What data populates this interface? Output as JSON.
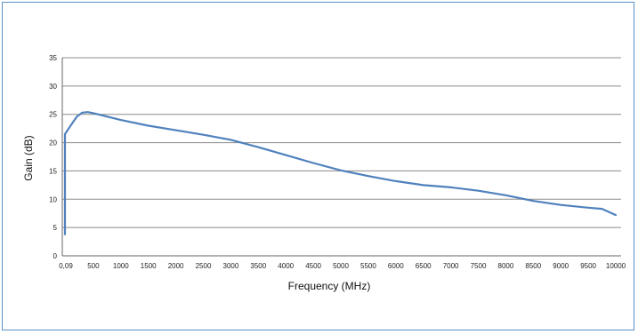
{
  "chart_data": {
    "type": "line",
    "xlabel": "Frequency (MHz)",
    "ylabel": "Gain (dB)",
    "ylim": [
      0,
      35
    ],
    "y_ticks": [
      "0",
      "5",
      "10",
      "15",
      "20",
      "25",
      "30",
      "35"
    ],
    "categories": [
      "0,09",
      "500",
      "1000",
      "1500",
      "2000",
      "2500",
      "3000",
      "3500",
      "4000",
      "4500",
      "5000",
      "5500",
      "6000",
      "6500",
      "7000",
      "7500",
      "8000",
      "8500",
      "9000",
      "9500",
      "10000"
    ],
    "grid": "horizontal",
    "colors": {
      "line": "#4f81bd",
      "grid": "#8c8c8c",
      "frame": "#5b8fc7"
    },
    "series": [
      {
        "points": [
          [
            0.09,
            3.8
          ],
          [
            0.09,
            21.5
          ],
          [
            100,
            23.2
          ],
          [
            200,
            24.6
          ],
          [
            300,
            25.3
          ],
          [
            400,
            25.4
          ],
          [
            500,
            25.2
          ],
          [
            1000,
            24.0
          ],
          [
            1500,
            23.0
          ],
          [
            2000,
            22.2
          ],
          [
            2500,
            21.4
          ],
          [
            3000,
            20.5
          ],
          [
            3500,
            19.2
          ],
          [
            4000,
            17.8
          ],
          [
            4500,
            16.4
          ],
          [
            5000,
            15.1
          ],
          [
            5500,
            14.1
          ],
          [
            6000,
            13.2
          ],
          [
            6500,
            12.5
          ],
          [
            7000,
            12.1
          ],
          [
            7500,
            11.5
          ],
          [
            8000,
            10.7
          ],
          [
            8500,
            9.7
          ],
          [
            9000,
            9.0
          ],
          [
            9500,
            8.5
          ],
          [
            9750,
            8.3
          ],
          [
            10000,
            7.2
          ]
        ]
      }
    ]
  }
}
